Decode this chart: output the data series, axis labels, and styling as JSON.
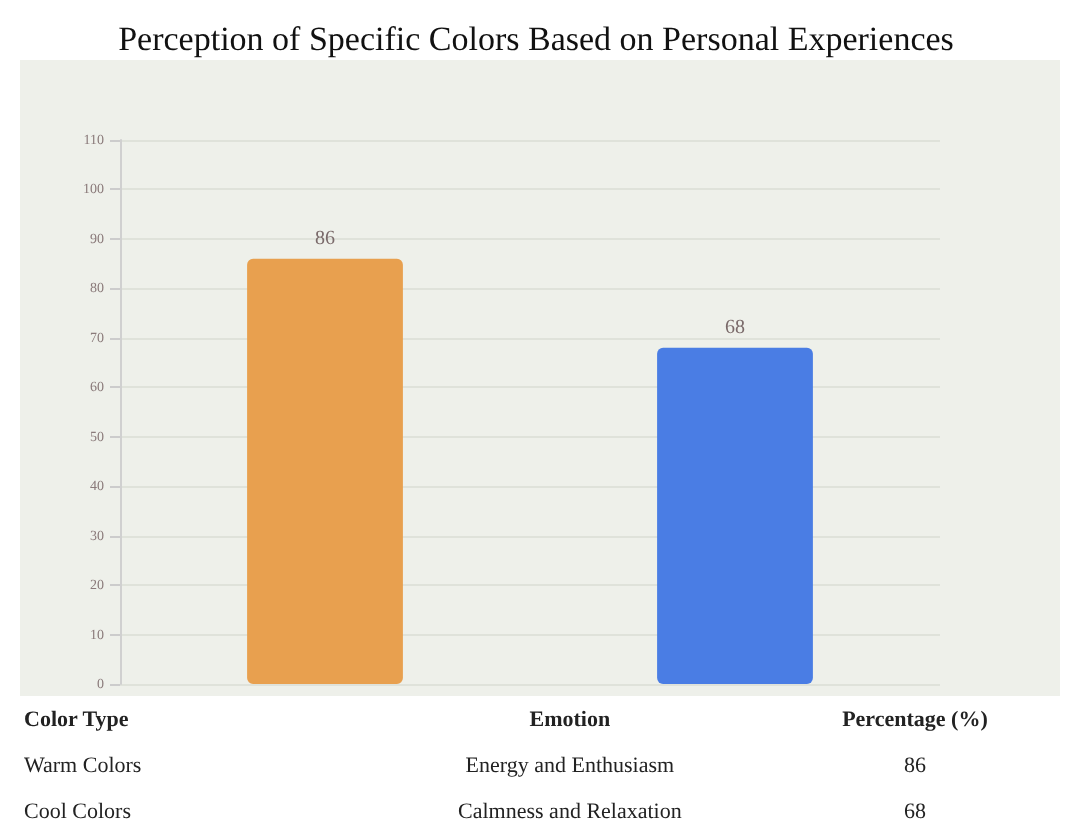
{
  "chart_data": {
    "type": "bar",
    "title": "Perception of Specific Colors Based on Personal Experiences",
    "categories": [
      null,
      null
    ],
    "values": [
      86,
      68
    ],
    "colors": [
      "#e8a04f",
      "#4a7de4"
    ],
    "annotations": [
      "Color Type",
      "Emotion",
      "Percentage (%)",
      "Warm Colors",
      "Energy and Enthusiasm",
      "86",
      "Cool Colors",
      "Calmness and Relaxation",
      "68"
    ],
    "ylim": [
      0,
      110
    ],
    "yticks": [
      0,
      10,
      20,
      30,
      40,
      50,
      60,
      70,
      80,
      90,
      100,
      110
    ],
    "grid": "y",
    "data_labels": true,
    "tick_labels": "y"
  }
}
